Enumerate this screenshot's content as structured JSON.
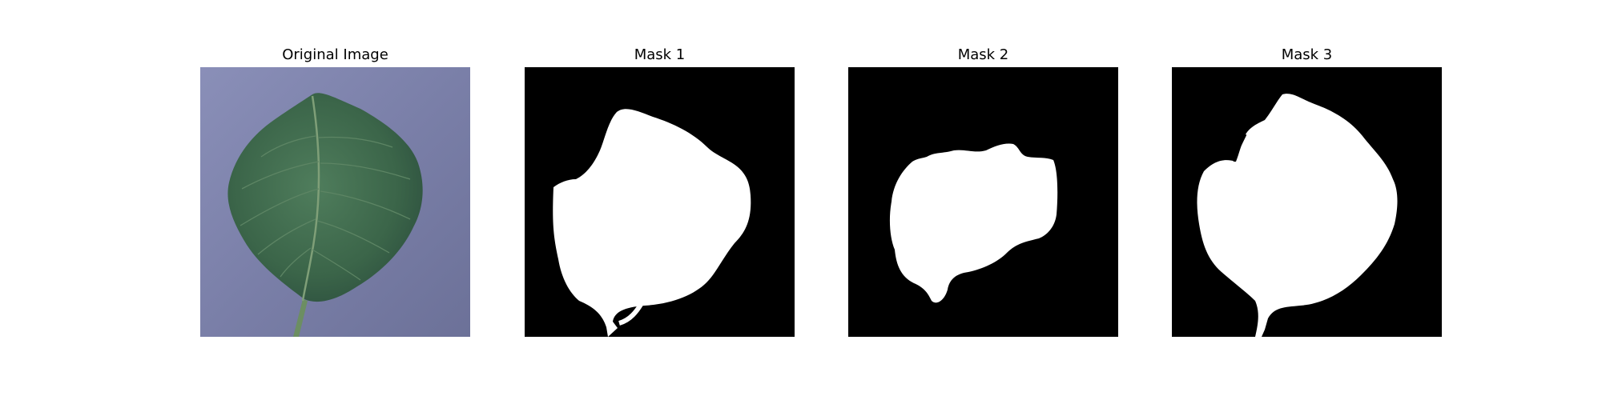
{
  "panels": [
    {
      "title": "Original Image"
    },
    {
      "title": "Mask 1"
    },
    {
      "title": "Mask 2"
    },
    {
      "title": "Mask 3"
    }
  ],
  "colors": {
    "background_tile": "#7c80a8",
    "leaf_green": "#3e6b4e",
    "mask_foreground": "#ffffff",
    "mask_background": "#000000"
  }
}
